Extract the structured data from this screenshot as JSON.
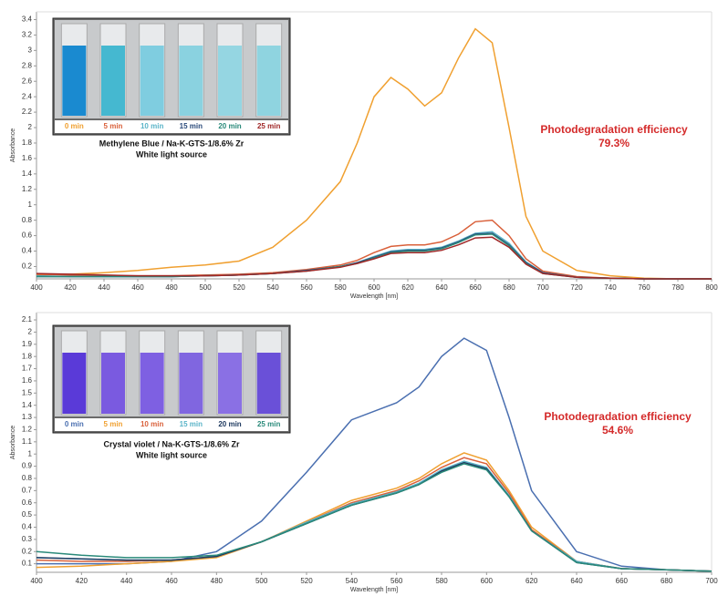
{
  "chart_data": [
    {
      "type": "line",
      "ylabel": "Absorbance",
      "xlabel": "Wavelength [nm]",
      "annotations": [
        "Photodegradation efficiency",
        "79.3%"
      ],
      "inset_caption": [
        "Methylene Blue / Na-K-GTS-1/8.6% Zr",
        "White light source"
      ],
      "xlim": [
        400,
        800
      ],
      "ylim": [
        0.04,
        3.5
      ],
      "xticks": [
        400,
        420,
        440,
        460,
        480,
        500,
        520,
        540,
        560,
        580,
        600,
        620,
        640,
        660,
        680,
        700,
        720,
        740,
        760,
        780,
        800
      ],
      "yticks": [
        0.2,
        0.4,
        0.6,
        0.8,
        1,
        1.2,
        1.4,
        1.6,
        1.8,
        2,
        2.2,
        2.4,
        2.6,
        2.8,
        3,
        3.2,
        3.4
      ],
      "x": [
        400,
        420,
        440,
        460,
        480,
        500,
        520,
        540,
        560,
        580,
        590,
        600,
        610,
        620,
        630,
        640,
        650,
        660,
        670,
        680,
        690,
        700,
        720,
        740,
        760,
        780,
        800
      ],
      "series": [
        {
          "name": "0 min",
          "color": "#f0a030",
          "values": [
            0.09,
            0.1,
            0.12,
            0.15,
            0.19,
            0.22,
            0.27,
            0.45,
            0.8,
            1.3,
            1.8,
            2.4,
            2.65,
            2.5,
            2.28,
            2.45,
            2.9,
            3.28,
            3.1,
            2.0,
            0.85,
            0.4,
            0.15,
            0.08,
            0.05,
            0.04,
            0.04
          ]
        },
        {
          "name": "5 min",
          "color": "#d9603a",
          "values": [
            0.1,
            0.09,
            0.08,
            0.08,
            0.08,
            0.09,
            0.1,
            0.12,
            0.16,
            0.22,
            0.28,
            0.38,
            0.46,
            0.48,
            0.48,
            0.52,
            0.62,
            0.78,
            0.8,
            0.6,
            0.3,
            0.14,
            0.07,
            0.05,
            0.04,
            0.04,
            0.04
          ]
        },
        {
          "name": "10 min",
          "color": "#5ab4c8",
          "values": [
            0.08,
            0.07,
            0.07,
            0.07,
            0.07,
            0.08,
            0.09,
            0.11,
            0.15,
            0.2,
            0.25,
            0.33,
            0.4,
            0.42,
            0.42,
            0.45,
            0.53,
            0.63,
            0.65,
            0.5,
            0.26,
            0.12,
            0.06,
            0.05,
            0.04,
            0.04,
            0.04
          ]
        },
        {
          "name": "15 min",
          "color": "#2a4a7a",
          "values": [
            0.07,
            0.07,
            0.07,
            0.07,
            0.07,
            0.08,
            0.09,
            0.11,
            0.15,
            0.2,
            0.25,
            0.32,
            0.39,
            0.41,
            0.41,
            0.44,
            0.52,
            0.62,
            0.63,
            0.48,
            0.25,
            0.12,
            0.06,
            0.05,
            0.04,
            0.04,
            0.04
          ]
        },
        {
          "name": "20 min",
          "color": "#2a8a7a",
          "values": [
            0.07,
            0.07,
            0.07,
            0.07,
            0.07,
            0.08,
            0.09,
            0.11,
            0.14,
            0.2,
            0.24,
            0.31,
            0.38,
            0.4,
            0.4,
            0.43,
            0.51,
            0.61,
            0.62,
            0.47,
            0.24,
            0.11,
            0.06,
            0.05,
            0.04,
            0.04,
            0.04
          ]
        },
        {
          "name": "25 min",
          "color": "#a02828",
          "values": [
            0.11,
            0.1,
            0.09,
            0.08,
            0.08,
            0.08,
            0.09,
            0.11,
            0.14,
            0.19,
            0.24,
            0.3,
            0.37,
            0.38,
            0.38,
            0.41,
            0.48,
            0.57,
            0.58,
            0.45,
            0.23,
            0.11,
            0.06,
            0.05,
            0.04,
            0.04,
            0.04
          ]
        }
      ]
    },
    {
      "type": "line",
      "ylabel": "Absorbance",
      "xlabel": "Wavelength [nm]",
      "annotations": [
        "Photodegradation efficiency",
        "54.6%"
      ],
      "inset_caption": [
        "Crystal violet / Na-K-GTS-1/8.6% Zr",
        "White light source"
      ],
      "xlim": [
        400,
        700
      ],
      "ylim": [
        0.03,
        2.16
      ],
      "xticks": [
        400,
        420,
        440,
        460,
        480,
        500,
        520,
        540,
        560,
        580,
        600,
        620,
        640,
        660,
        680,
        700
      ],
      "yticks": [
        0.1,
        0.2,
        0.3,
        0.4,
        0.5,
        0.6,
        0.7,
        0.8,
        0.9,
        1,
        1.1,
        1.2,
        1.3,
        1.4,
        1.5,
        1.6,
        1.7,
        1.8,
        1.9,
        2,
        2.1
      ],
      "x": [
        400,
        420,
        440,
        460,
        480,
        500,
        520,
        540,
        560,
        570,
        580,
        590,
        600,
        610,
        620,
        640,
        660,
        680,
        700
      ],
      "series": [
        {
          "name": "0 min",
          "color": "#4a6fb0",
          "values": [
            0.1,
            0.1,
            0.1,
            0.12,
            0.2,
            0.45,
            0.85,
            1.28,
            1.42,
            1.55,
            1.8,
            1.95,
            1.85,
            1.3,
            0.7,
            0.2,
            0.08,
            0.05,
            0.04
          ]
        },
        {
          "name": "5 min",
          "color": "#f0a030",
          "values": [
            0.07,
            0.08,
            0.1,
            0.12,
            0.15,
            0.28,
            0.45,
            0.62,
            0.72,
            0.8,
            0.92,
            1.01,
            0.95,
            0.7,
            0.4,
            0.12,
            0.06,
            0.05,
            0.04
          ]
        },
        {
          "name": "10 min",
          "color": "#d9603a",
          "values": [
            0.13,
            0.12,
            0.12,
            0.13,
            0.16,
            0.28,
            0.44,
            0.6,
            0.7,
            0.78,
            0.89,
            0.97,
            0.92,
            0.68,
            0.38,
            0.12,
            0.06,
            0.05,
            0.04
          ]
        },
        {
          "name": "15 min",
          "color": "#5ab4c8",
          "values": [
            0.15,
            0.14,
            0.13,
            0.13,
            0.16,
            0.28,
            0.44,
            0.59,
            0.69,
            0.76,
            0.87,
            0.94,
            0.89,
            0.66,
            0.37,
            0.12,
            0.06,
            0.05,
            0.04
          ]
        },
        {
          "name": "20 min",
          "color": "#1f3a60",
          "values": [
            0.15,
            0.14,
            0.13,
            0.13,
            0.16,
            0.28,
            0.43,
            0.58,
            0.68,
            0.75,
            0.86,
            0.93,
            0.88,
            0.65,
            0.37,
            0.11,
            0.06,
            0.05,
            0.04
          ]
        },
        {
          "name": "25 min",
          "color": "#2a8a7a",
          "values": [
            0.2,
            0.17,
            0.15,
            0.15,
            0.17,
            0.28,
            0.43,
            0.58,
            0.68,
            0.75,
            0.85,
            0.92,
            0.87,
            0.65,
            0.37,
            0.11,
            0.06,
            0.05,
            0.04
          ]
        }
      ]
    }
  ]
}
